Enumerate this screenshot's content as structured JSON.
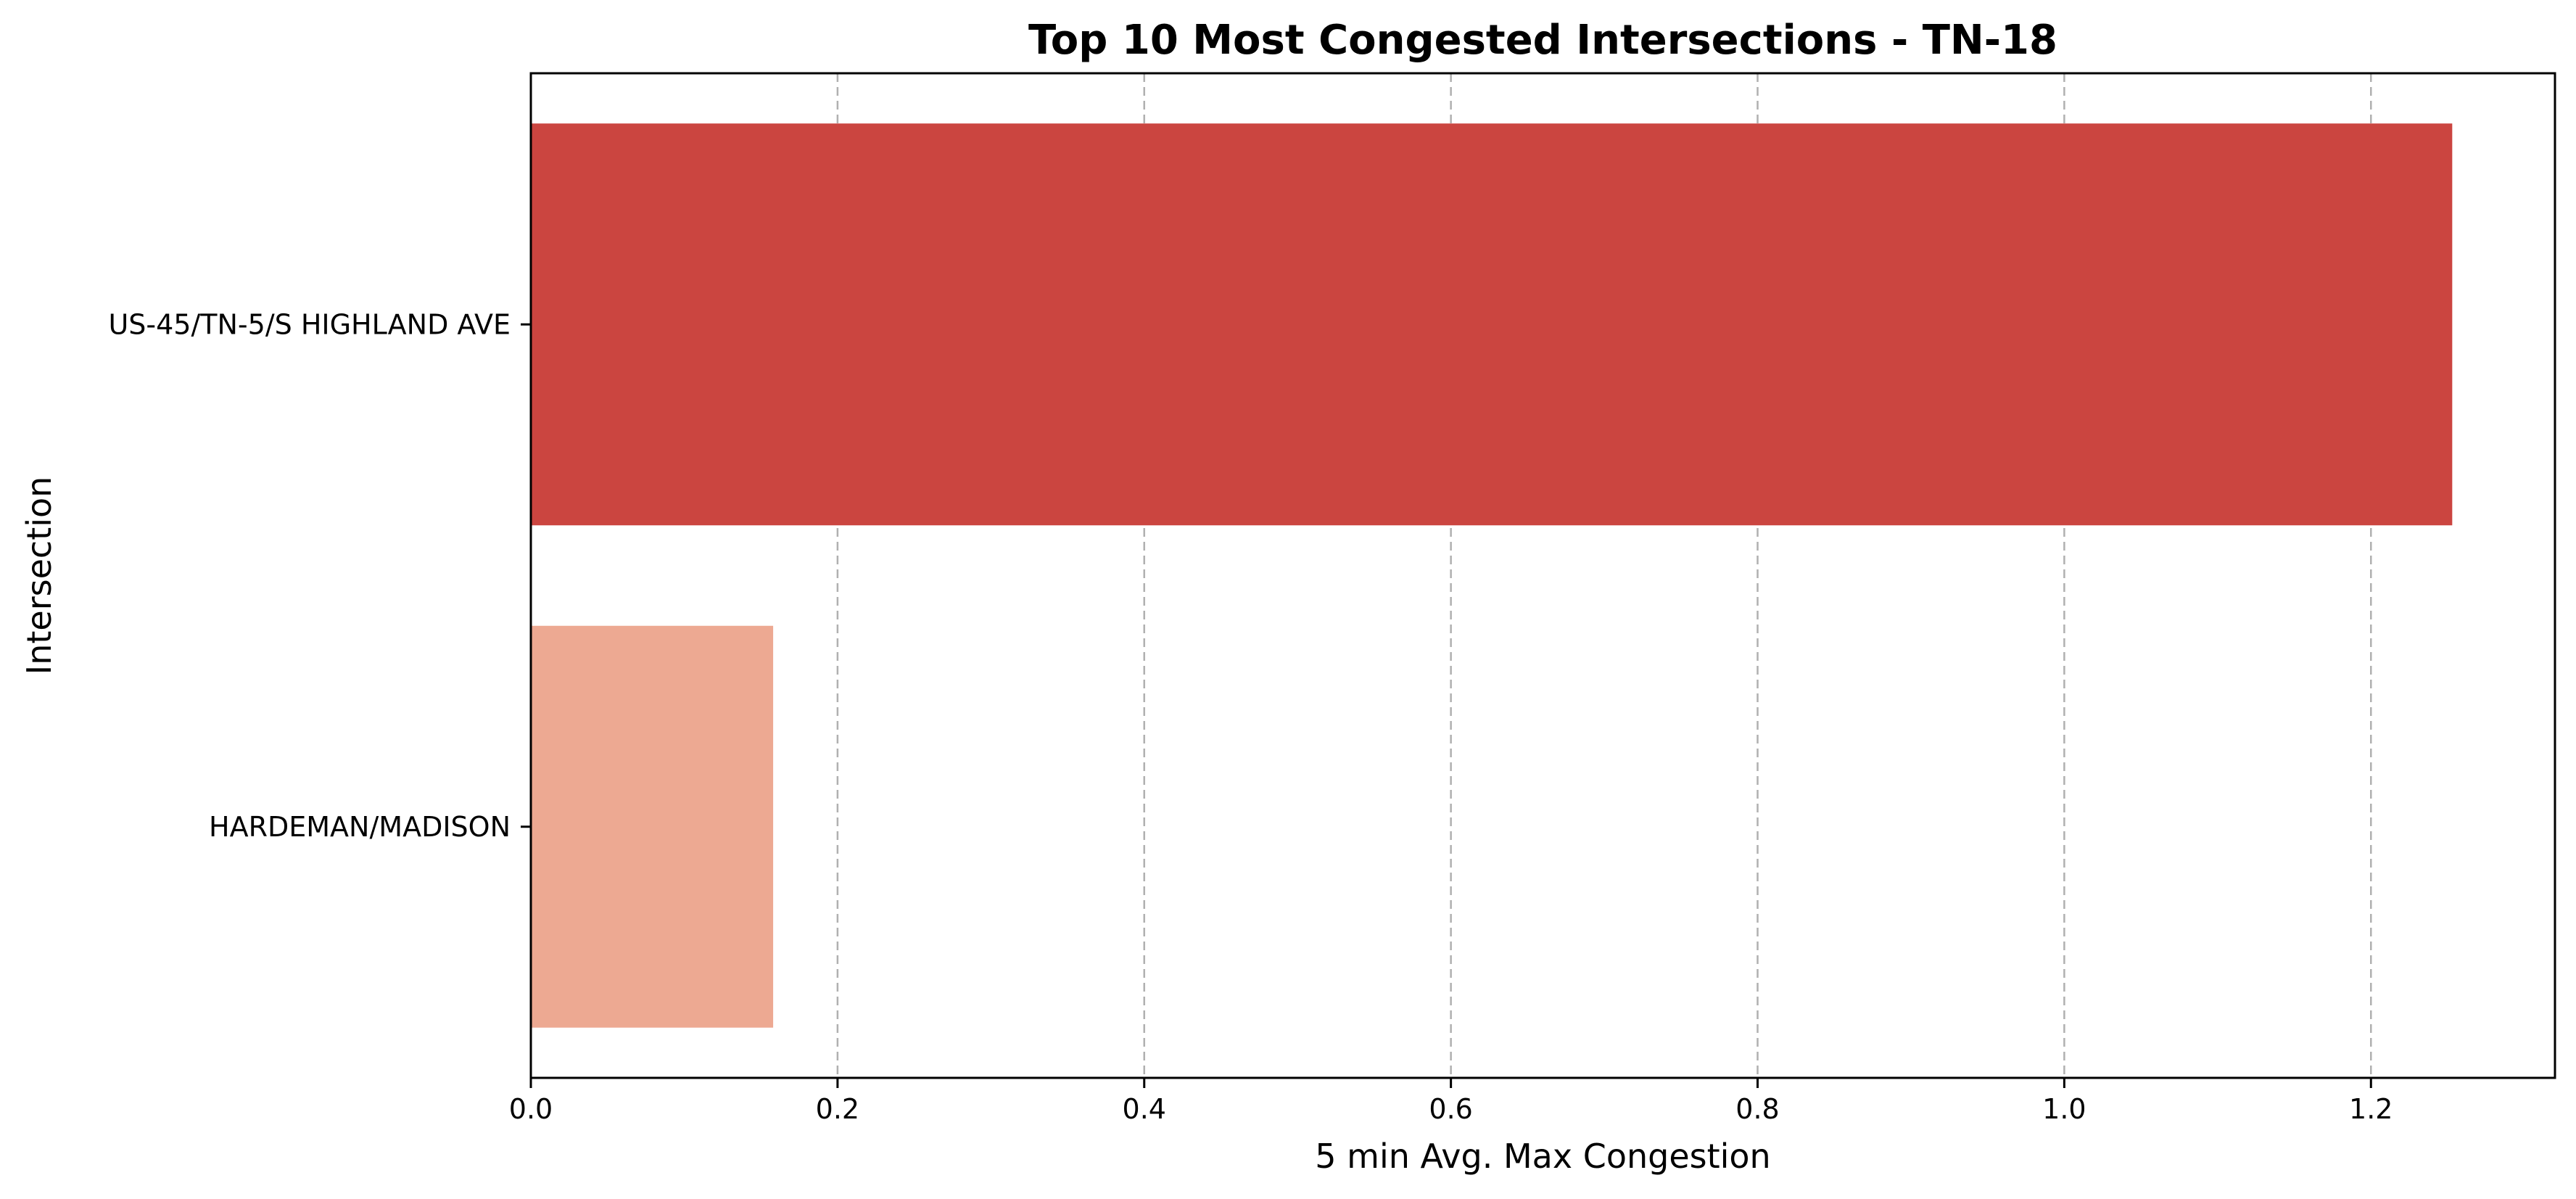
{
  "chart_data": {
    "type": "bar",
    "orientation": "horizontal",
    "title": "Top 10 Most Congested Intersections - TN-18",
    "xlabel": "5 min Avg. Max Congestion",
    "ylabel": "Intersection",
    "categories": [
      "US-45/TN-5/S HIGHLAND AVE",
      "HARDEMAN/MADISON"
    ],
    "values": [
      1.253,
      0.158
    ],
    "colors": [
      "#cb4540",
      "#eda992"
    ],
    "xlim": [
      0,
      1.32
    ],
    "xticks": [
      0.0,
      0.2,
      0.4,
      0.6,
      0.8,
      1.0,
      1.2
    ],
    "xtick_labels": [
      "0.0",
      "0.2",
      "0.4",
      "0.6",
      "0.8",
      "1.0",
      "1.2"
    ],
    "grid": {
      "axis": "x",
      "style": "dashed",
      "color": "#b0b0b0"
    },
    "legend": "none"
  }
}
